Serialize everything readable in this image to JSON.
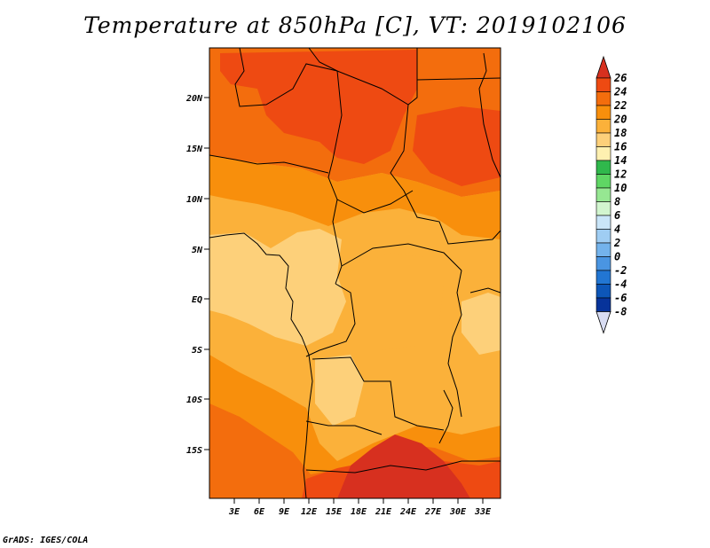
{
  "title": "Temperature at 850hPa [C], VT: 2019102106",
  "credit": "GrADS: IGES/COLA",
  "map": {
    "lat_labels": [
      "20N",
      "15N",
      "10N",
      "5N",
      "EQ",
      "5S",
      "10S",
      "15S"
    ],
    "lon_labels": [
      "3E",
      "6E",
      "9E",
      "12E",
      "15E",
      "18E",
      "21E",
      "24E",
      "27E",
      "30E",
      "33E"
    ]
  },
  "colorbar": {
    "labels": [
      "26",
      "24",
      "22",
      "20",
      "18",
      "16",
      "14",
      "12",
      "10",
      "8",
      "6",
      "4",
      "2",
      "0",
      "-2",
      "-4",
      "-6",
      "-8"
    ],
    "colors": [
      "#d7301f",
      "#ee4a12",
      "#f36d0d",
      "#f88f0c",
      "#fbb13a",
      "#fdd07a",
      "#fef0b0",
      "#30b84c",
      "#5fd664",
      "#96e792",
      "#d2f5cf",
      "#c9e5f8",
      "#9fcdf3",
      "#74b3ec",
      "#4a95e2",
      "#2276d3",
      "#0d56b8",
      "#07339a",
      "#0b1a6c"
    ],
    "under_color": "#d8dcf2"
  }
}
